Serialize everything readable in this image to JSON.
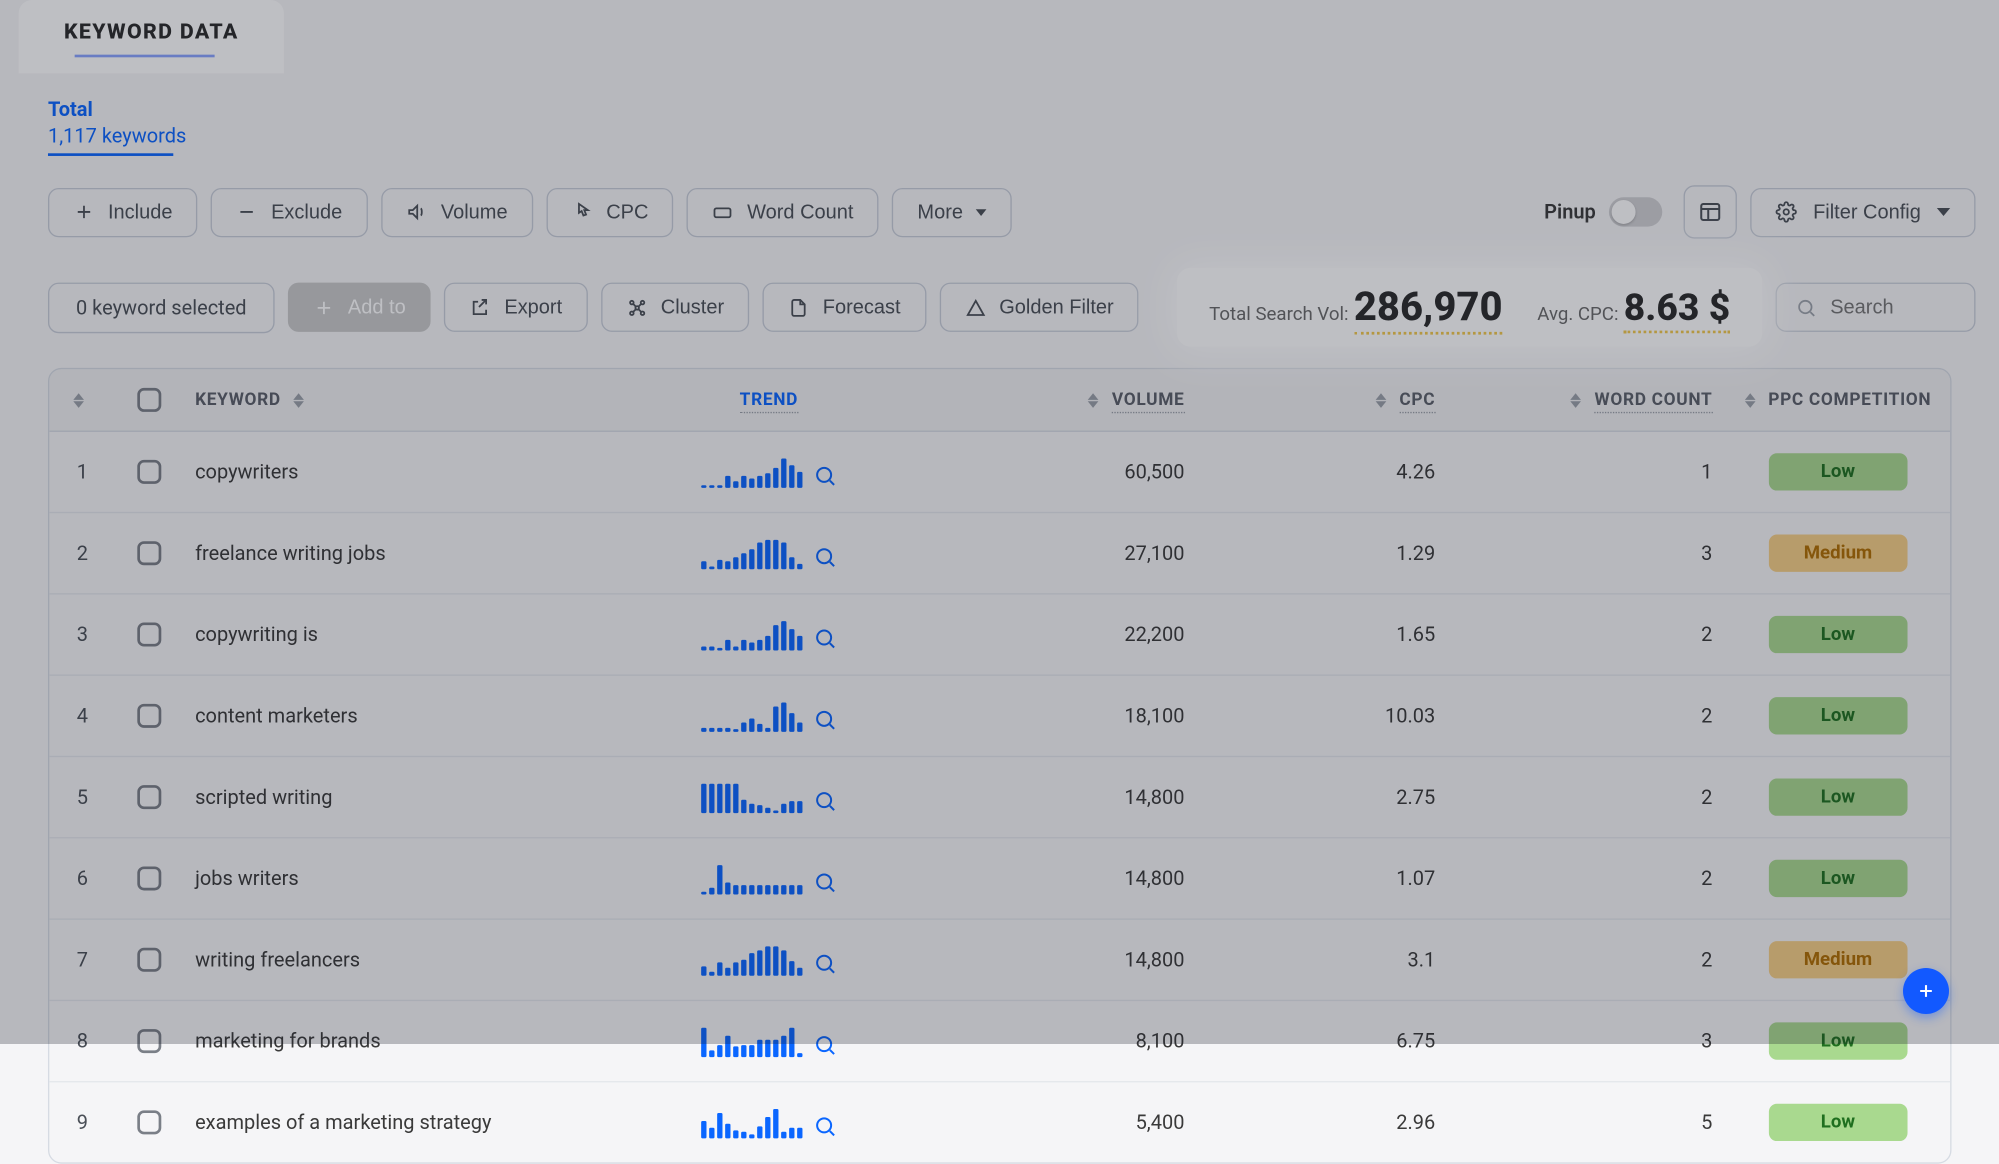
{
  "header": {
    "tab_title": "KEYWORD DATA"
  },
  "summary": {
    "total_label": "Total",
    "keywords_text": "1,117 keywords"
  },
  "filters": {
    "include": "Include",
    "exclude": "Exclude",
    "volume": "Volume",
    "cpc": "CPC",
    "word_count": "Word Count",
    "more": "More"
  },
  "topright": {
    "pinup": "Pinup",
    "filter_config": "Filter Config"
  },
  "actions": {
    "selected_count": "0 keyword selected",
    "add_to": "Add to",
    "export": "Export",
    "cluster": "Cluster",
    "forecast": "Forecast",
    "golden_filter": "Golden Filter"
  },
  "stats": {
    "vol_label": "Total Search Vol:",
    "vol_value": "286,970",
    "cpc_label": "Avg. CPC:",
    "cpc_value": "8.63 $"
  },
  "search": {
    "placeholder": "Search"
  },
  "columns": {
    "keyword": "KEYWORD",
    "trend": "TREND",
    "volume": "VOLUME",
    "cpc": "CPC",
    "word_count": "WORD COUNT",
    "ppc": "PPC COMPETITION"
  },
  "colors": {
    "accent": "#0a66ff",
    "badge_low_bg": "#a9d98f",
    "badge_low_fg": "#1f6f1f",
    "badge_med_bg": "#f6cf86",
    "badge_med_fg": "#b06e00",
    "spark_bar": "#0a66ff"
  },
  "badges": {
    "low": "Low",
    "medium": "Medium"
  },
  "rows": [
    {
      "idx": "1",
      "keyword": "copywriters",
      "volume": "60,500",
      "cpc": "4.26",
      "wc": "1",
      "ppc": "low",
      "trend": [
        2,
        2,
        1,
        7,
        4,
        7,
        6,
        7,
        9,
        12,
        18,
        14,
        10
      ]
    },
    {
      "idx": "2",
      "keyword": "freelance writing jobs",
      "volume": "27,100",
      "cpc": "1.29",
      "wc": "3",
      "ppc": "medium",
      "trend": [
        5,
        2,
        6,
        5,
        7,
        10,
        12,
        16,
        18,
        18,
        16,
        7,
        3
      ]
    },
    {
      "idx": "3",
      "keyword": "copywriting is",
      "volume": "22,200",
      "cpc": "1.65",
      "wc": "2",
      "ppc": "low",
      "trend": [
        2,
        2,
        1,
        5,
        2,
        5,
        4,
        5,
        7,
        12,
        14,
        10,
        7
      ]
    },
    {
      "idx": "4",
      "keyword": "content marketers",
      "volume": "18,100",
      "cpc": "10.03",
      "wc": "2",
      "ppc": "low",
      "trend": [
        2,
        2,
        2,
        2,
        1,
        5,
        7,
        4,
        2,
        14,
        16,
        10,
        5
      ]
    },
    {
      "idx": "5",
      "keyword": "scripted writing",
      "volume": "14,800",
      "cpc": "2.75",
      "wc": "2",
      "ppc": "low",
      "trend": [
        18,
        18,
        18,
        18,
        18,
        8,
        6,
        5,
        3,
        2,
        6,
        7,
        7
      ]
    },
    {
      "idx": "6",
      "keyword": "jobs writers",
      "volume": "14,800",
      "cpc": "1.07",
      "wc": "2",
      "ppc": "low",
      "trend": [
        2,
        4,
        18,
        7,
        6,
        6,
        6,
        6,
        6,
        6,
        6,
        6,
        6
      ]
    },
    {
      "idx": "7",
      "keyword": "writing freelancers",
      "volume": "14,800",
      "cpc": "3.1",
      "wc": "2",
      "ppc": "medium",
      "trend": [
        5,
        2,
        7,
        4,
        7,
        9,
        12,
        14,
        16,
        16,
        14,
        8,
        4
      ]
    },
    {
      "idx": "8",
      "keyword": "marketing for brands",
      "volume": "8,100",
      "cpc": "6.75",
      "wc": "3",
      "ppc": "low",
      "trend": [
        14,
        3,
        6,
        10,
        5,
        6,
        6,
        8,
        8,
        8,
        10,
        14,
        2
      ]
    },
    {
      "idx": "9",
      "keyword": "examples of a marketing strategy",
      "volume": "5,400",
      "cpc": "2.96",
      "wc": "5",
      "ppc": "low",
      "trend": [
        8,
        5,
        12,
        7,
        4,
        3,
        2,
        6,
        10,
        14,
        3,
        5,
        5
      ]
    }
  ]
}
